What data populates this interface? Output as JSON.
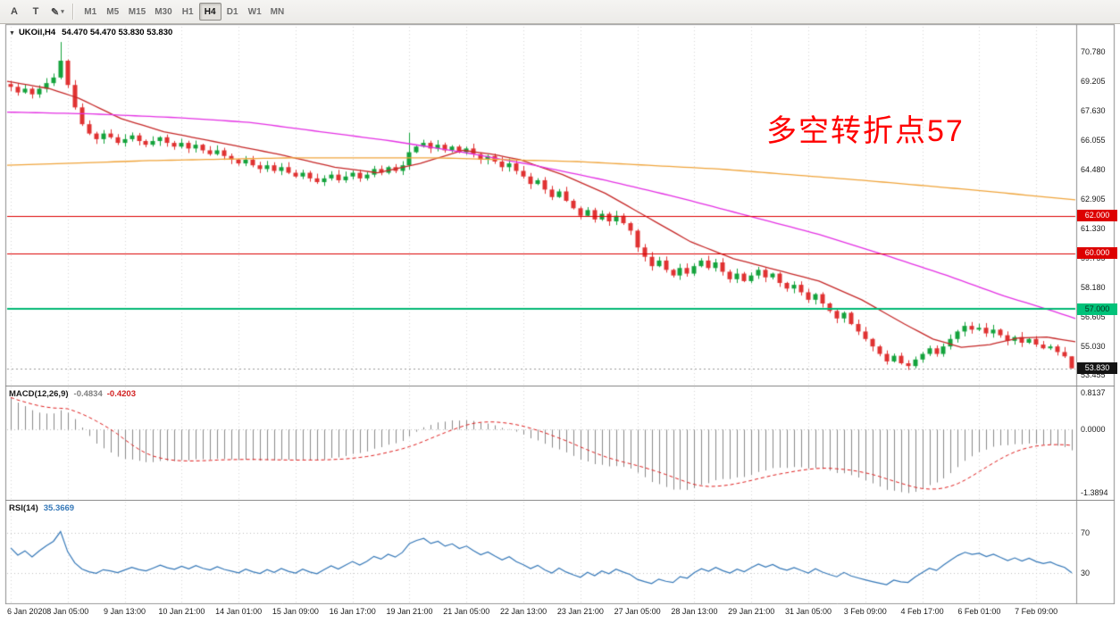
{
  "toolbar": {
    "tools": [
      {
        "label": "A"
      },
      {
        "label": "T"
      },
      {
        "label": "✎",
        "dropdown": "▾"
      }
    ],
    "timeframes": [
      "M1",
      "M5",
      "M15",
      "M30",
      "H1",
      "H4",
      "D1",
      "W1",
      "MN"
    ],
    "active_timeframe": "H4"
  },
  "title": {
    "arrow": "▼",
    "symbol": "UKOil,H4",
    "ohlc": "54.470 54.470 53.830 53.830"
  },
  "annotation": {
    "text": "多空转折点57",
    "color": "#ff0000"
  },
  "chart_data": {
    "type": "candlestick",
    "symbol": "UKOil",
    "timeframe": "H4",
    "open_first": 69.05,
    "closes": [
      68.9,
      68.6,
      68.8,
      68.5,
      68.8,
      69.1,
      69.4,
      70.3,
      69.0,
      67.8,
      66.9,
      66.4,
      66.1,
      66.4,
      66.2,
      65.9,
      66.1,
      66.3,
      66.0,
      65.8,
      66.0,
      66.2,
      65.9,
      65.7,
      65.9,
      65.6,
      65.8,
      65.5,
      65.3,
      65.5,
      65.2,
      65.0,
      64.8,
      65.0,
      64.7,
      64.5,
      64.7,
      64.4,
      64.6,
      64.3,
      64.1,
      64.3,
      64.0,
      63.8,
      64.0,
      64.2,
      63.9,
      64.1,
      64.3,
      64.0,
      64.2,
      64.5,
      64.3,
      64.6,
      64.4,
      64.7,
      65.4,
      65.7,
      65.9,
      65.6,
      65.8,
      65.5,
      65.7,
      65.4,
      65.6,
      65.3,
      65.0,
      65.2,
      64.9,
      64.6,
      64.8,
      64.4,
      64.1,
      63.7,
      63.9,
      63.4,
      63.0,
      63.3,
      62.8,
      62.4,
      62.0,
      62.3,
      61.8,
      62.1,
      61.7,
      62.0,
      61.6,
      61.2,
      60.3,
      59.8,
      59.3,
      59.6,
      59.1,
      58.8,
      59.2,
      58.9,
      59.3,
      59.6,
      59.2,
      59.5,
      59.0,
      58.6,
      58.9,
      58.5,
      58.8,
      59.1,
      58.7,
      58.9,
      58.4,
      58.1,
      58.3,
      57.9,
      57.5,
      57.8,
      57.3,
      56.9,
      56.5,
      56.8,
      56.2,
      55.8,
      55.4,
      55.0,
      54.6,
      54.2,
      54.5,
      54.1,
      53.95,
      54.3,
      54.6,
      54.9,
      54.6,
      55.0,
      55.4,
      55.8,
      56.1,
      55.9,
      56.0,
      55.7,
      55.9,
      55.6,
      55.3,
      55.5,
      55.2,
      55.4,
      55.1,
      54.9,
      55.0,
      54.7,
      54.47,
      53.83
    ],
    "wick_overrides": {
      "7": {
        "high": 71.3
      },
      "56": {
        "high": 66.45
      },
      "149": {
        "high": 54.47,
        "low": 53.83
      }
    },
    "colors": {
      "up": "#14a33c",
      "down": "#e03232"
    },
    "price_range": {
      "max": 71.4,
      "min": 53.0
    },
    "price_axis_labels": [
      "70.780",
      "69.205",
      "67.630",
      "66.055",
      "64.480",
      "62.905",
      "61.330",
      "59.755",
      "58.180",
      "56.605",
      "55.030",
      "53.455"
    ],
    "levels": [
      {
        "value": 62.0,
        "label": "62.000",
        "color": "#dd0000",
        "badge_bg": "#dd0000",
        "badge_fg": "#ffffff",
        "line": "solid",
        "width": 1
      },
      {
        "value": 60.0,
        "label": "60.000",
        "color": "#dd0000",
        "badge_bg": "#dd0000",
        "badge_fg": "#ffffff",
        "line": "solid",
        "width": 1
      },
      {
        "value": 57.0,
        "label": "57.000",
        "color": "#00b873",
        "badge_bg": "#00c279",
        "badge_fg": "#0b2e1d",
        "line": "solid",
        "width": 2
      },
      {
        "value": 53.83,
        "label": "53.830",
        "color": "#9a9a9a",
        "badge_bg": "#141414",
        "badge_fg": "#ffffff",
        "line": "dashed",
        "width": 1
      }
    ],
    "moving_averages": [
      {
        "name": "ma-fast-red",
        "color": "#c62828",
        "points": [
          [
            0,
            69.2
          ],
          [
            6,
            68.8
          ],
          [
            10,
            68.3
          ],
          [
            16,
            67.2
          ],
          [
            22,
            66.5
          ],
          [
            30,
            65.9
          ],
          [
            38,
            65.3
          ],
          [
            46,
            64.6
          ],
          [
            52,
            64.3
          ],
          [
            58,
            64.8
          ],
          [
            64,
            65.5
          ],
          [
            68,
            65.3
          ],
          [
            72,
            65.0
          ],
          [
            78,
            64.2
          ],
          [
            84,
            63.2
          ],
          [
            90,
            61.9
          ],
          [
            96,
            60.6
          ],
          [
            102,
            59.7
          ],
          [
            108,
            59.1
          ],
          [
            114,
            58.5
          ],
          [
            120,
            57.5
          ],
          [
            126,
            56.2
          ],
          [
            130,
            55.4
          ],
          [
            134,
            54.95
          ],
          [
            138,
            55.1
          ],
          [
            142,
            55.45
          ],
          [
            146,
            55.5
          ],
          [
            150,
            55.25
          ]
        ]
      },
      {
        "name": "ma-mid-magenta",
        "color": "#e431e4",
        "points": [
          [
            0,
            67.55
          ],
          [
            12,
            67.45
          ],
          [
            24,
            67.25
          ],
          [
            34,
            67.0
          ],
          [
            44,
            66.5
          ],
          [
            54,
            66.0
          ],
          [
            64,
            65.4
          ],
          [
            74,
            64.7
          ],
          [
            84,
            63.9
          ],
          [
            94,
            63.0
          ],
          [
            104,
            62.0
          ],
          [
            114,
            61.0
          ],
          [
            124,
            59.8
          ],
          [
            132,
            58.8
          ],
          [
            140,
            57.7
          ],
          [
            146,
            57.0
          ],
          [
            150,
            56.5
          ]
        ]
      },
      {
        "name": "ma-slow-orange",
        "color": "#f0a53c",
        "points": [
          [
            0,
            64.7
          ],
          [
            20,
            64.95
          ],
          [
            40,
            65.1
          ],
          [
            60,
            65.1
          ],
          [
            80,
            64.9
          ],
          [
            100,
            64.5
          ],
          [
            120,
            63.9
          ],
          [
            135,
            63.4
          ],
          [
            150,
            62.85
          ]
        ]
      }
    ],
    "time_axis": {
      "bars_per_label": 8,
      "labels": [
        "6 Jan 2020",
        "8 Jan 05:00",
        "9 Jan 13:00",
        "10 Jan 21:00",
        "14 Jan 01:00",
        "15 Jan 09:00",
        "16 Jan 17:00",
        "19 Jan 21:00",
        "21 Jan 05:00",
        "22 Jan 13:00",
        "23 Jan 21:00",
        "27 Jan 05:00",
        "28 Jan 13:00",
        "29 Jan 21:00",
        "31 Jan 05:00",
        "3 Feb 09:00",
        "4 Feb 17:00",
        "6 Feb 01:00",
        "7 Feb 09:00"
      ]
    },
    "macd": {
      "label": "MACD(12,26,9)",
      "main_value": "-0.4834",
      "signal_value": "-0.4203",
      "histogram_color": "#8a8a8a",
      "signal_color": "#e02020",
      "axis_labels": [
        {
          "value": 0.8137,
          "label": "0.8137"
        },
        {
          "value": 0,
          "label": "0.0000"
        },
        {
          "value": -1.3894,
          "label": "-1.3894"
        }
      ],
      "range": {
        "max": 0.8137,
        "min": -1.3894
      }
    },
    "rsi": {
      "label": "RSI(14)",
      "value": "35.3669",
      "color": "#3578b8",
      "levels": [
        {
          "value": 70,
          "label": "70"
        },
        {
          "value": 30,
          "label": "30"
        }
      ],
      "range": {
        "max": 100,
        "min": 0
      }
    }
  }
}
